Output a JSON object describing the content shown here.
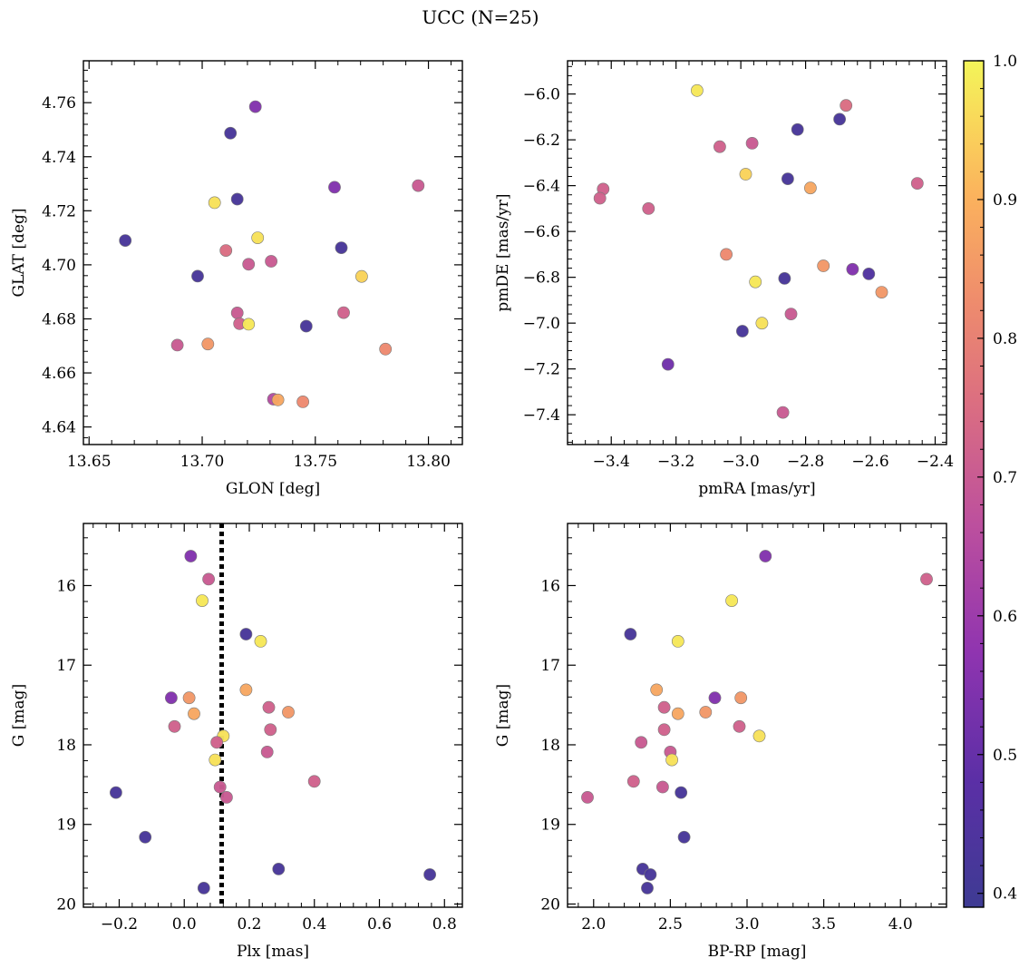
{
  "title": "UCC (N=25)",
  "chart_data": [
    {
      "type": "scatter",
      "xlabel": "GLON [deg]",
      "ylabel": "GLAT [deg]",
      "xlim": [
        13.6475,
        13.815
      ],
      "ylim": [
        4.6335,
        4.7755
      ],
      "yreversed": false,
      "xticks": [
        13.65,
        13.7,
        13.75,
        13.8
      ],
      "xtick_labels": [
        "13.65",
        "13.70",
        "13.75",
        "13.80"
      ],
      "yticks": [
        4.64,
        4.66,
        4.68,
        4.7,
        4.72,
        4.74,
        4.76
      ],
      "ytick_labels": [
        "4.64",
        "4.66",
        "4.68",
        "4.70",
        "4.72",
        "4.74",
        "4.76"
      ],
      "points": [
        {
          "x": 13.7235,
          "y": 4.7585,
          "c": 0.55
        },
        {
          "x": 13.7125,
          "y": 4.7487,
          "c": 0.42
        },
        {
          "x": 13.7055,
          "y": 4.723,
          "c": 0.97
        },
        {
          "x": 13.7155,
          "y": 4.7243,
          "c": 0.42
        },
        {
          "x": 13.7585,
          "y": 4.7287,
          "c": 0.55
        },
        {
          "x": 13.7955,
          "y": 4.7293,
          "c": 0.7
        },
        {
          "x": 13.666,
          "y": 4.709,
          "c": 0.42
        },
        {
          "x": 13.7245,
          "y": 4.71,
          "c": 0.97
        },
        {
          "x": 13.7105,
          "y": 4.7053,
          "c": 0.75
        },
        {
          "x": 13.7615,
          "y": 4.7063,
          "c": 0.42
        },
        {
          "x": 13.698,
          "y": 4.6958,
          "c": 0.42
        },
        {
          "x": 13.7205,
          "y": 4.7002,
          "c": 0.7
        },
        {
          "x": 13.7305,
          "y": 4.7013,
          "c": 0.7
        },
        {
          "x": 13.7705,
          "y": 4.6957,
          "c": 0.95
        },
        {
          "x": 13.7155,
          "y": 4.6822,
          "c": 0.7
        },
        {
          "x": 13.7165,
          "y": 4.6782,
          "c": 0.72
        },
        {
          "x": 13.7205,
          "y": 4.678,
          "c": 0.98
        },
        {
          "x": 13.746,
          "y": 4.6773,
          "c": 0.42
        },
        {
          "x": 13.7625,
          "y": 4.6823,
          "c": 0.72
        },
        {
          "x": 13.689,
          "y": 4.6703,
          "c": 0.7
        },
        {
          "x": 13.7025,
          "y": 4.6707,
          "c": 0.85
        },
        {
          "x": 13.781,
          "y": 4.6688,
          "c": 0.82
        },
        {
          "x": 13.7315,
          "y": 4.6503,
          "c": 0.65
        },
        {
          "x": 13.7335,
          "y": 4.65,
          "c": 0.88
        },
        {
          "x": 13.7445,
          "y": 4.6493,
          "c": 0.82
        }
      ]
    },
    {
      "type": "scatter",
      "xlabel": "pmRA [mas/yr]",
      "ylabel": "pmDE [mas/yr]",
      "xlim": [
        -3.535,
        -2.365
      ],
      "ylim": [
        -7.53,
        -5.855
      ],
      "yreversed": false,
      "xticks": [
        -3.4,
        -3.2,
        -3.0,
        -2.8,
        -2.6,
        -2.4
      ],
      "xtick_labels": [
        "−3.4",
        "−3.2",
        "−3.0",
        "−2.8",
        "−2.6",
        "−2.4"
      ],
      "yticks": [
        -7.4,
        -7.2,
        -7.0,
        -6.8,
        -6.6,
        -6.4,
        -6.2,
        -6.0
      ],
      "ytick_labels": [
        "−7.4",
        "−7.2",
        "−7.0",
        "−6.8",
        "−6.6",
        "−6.4",
        "−6.2",
        "−6.0"
      ],
      "points": [
        {
          "x": -3.135,
          "y": -5.985,
          "c": 0.98
        },
        {
          "x": -2.675,
          "y": -6.05,
          "c": 0.75
        },
        {
          "x": -2.695,
          "y": -6.11,
          "c": 0.42
        },
        {
          "x": -2.825,
          "y": -6.155,
          "c": 0.42
        },
        {
          "x": -2.965,
          "y": -6.215,
          "c": 0.7
        },
        {
          "x": -3.065,
          "y": -6.23,
          "c": 0.72
        },
        {
          "x": -2.985,
          "y": -6.35,
          "c": 0.95
        },
        {
          "x": -2.855,
          "y": -6.37,
          "c": 0.42
        },
        {
          "x": -2.785,
          "y": -6.41,
          "c": 0.88
        },
        {
          "x": -2.455,
          "y": -6.39,
          "c": 0.72
        },
        {
          "x": -3.425,
          "y": -6.415,
          "c": 0.72
        },
        {
          "x": -3.435,
          "y": -6.455,
          "c": 0.72
        },
        {
          "x": -3.285,
          "y": -6.5,
          "c": 0.72
        },
        {
          "x": -3.045,
          "y": -6.7,
          "c": 0.82
        },
        {
          "x": -2.745,
          "y": -6.75,
          "c": 0.85
        },
        {
          "x": -2.655,
          "y": -6.765,
          "c": 0.55
        },
        {
          "x": -2.605,
          "y": -6.785,
          "c": 0.45
        },
        {
          "x": -2.565,
          "y": -6.865,
          "c": 0.85
        },
        {
          "x": -2.955,
          "y": -6.82,
          "c": 0.98
        },
        {
          "x": -2.865,
          "y": -6.805,
          "c": 0.42
        },
        {
          "x": -2.845,
          "y": -6.96,
          "c": 0.7
        },
        {
          "x": -2.935,
          "y": -7.0,
          "c": 0.97
        },
        {
          "x": -2.995,
          "y": -7.035,
          "c": 0.42
        },
        {
          "x": -3.225,
          "y": -7.18,
          "c": 0.52
        },
        {
          "x": -2.87,
          "y": -7.39,
          "c": 0.7
        }
      ]
    },
    {
      "type": "scatter",
      "xlabel": "Plx [mas]",
      "ylabel": "G [mag]",
      "xlim": [
        -0.31,
        0.855
      ],
      "ylim": [
        15.22,
        20.04
      ],
      "yreversed": true,
      "xticks": [
        -0.2,
        0.0,
        0.2,
        0.4,
        0.6,
        0.8
      ],
      "xtick_labels": [
        "−0.2",
        "0.0",
        "0.2",
        "0.4",
        "0.6",
        "0.8"
      ],
      "yticks": [
        16,
        17,
        18,
        19,
        20
      ],
      "ytick_labels": [
        "16",
        "17",
        "18",
        "19",
        "20"
      ],
      "vline_x": 0.115,
      "points": [
        {
          "x": 0.02,
          "y": 15.63,
          "c": 0.55
        },
        {
          "x": 0.075,
          "y": 15.92,
          "c": 0.7
        },
        {
          "x": 0.055,
          "y": 16.19,
          "c": 0.98
        },
        {
          "x": 0.19,
          "y": 16.61,
          "c": 0.42
        },
        {
          "x": 0.235,
          "y": 16.7,
          "c": 0.98
        },
        {
          "x": 0.19,
          "y": 17.31,
          "c": 0.88
        },
        {
          "x": -0.04,
          "y": 17.41,
          "c": 0.55
        },
        {
          "x": 0.015,
          "y": 17.41,
          "c": 0.85
        },
        {
          "x": 0.26,
          "y": 17.53,
          "c": 0.72
        },
        {
          "x": 0.32,
          "y": 17.59,
          "c": 0.85
        },
        {
          "x": 0.03,
          "y": 17.61,
          "c": 0.88
        },
        {
          "x": -0.03,
          "y": 17.77,
          "c": 0.72
        },
        {
          "x": 0.265,
          "y": 17.81,
          "c": 0.72
        },
        {
          "x": 0.12,
          "y": 17.89,
          "c": 0.97
        },
        {
          "x": 0.1,
          "y": 17.97,
          "c": 0.72
        },
        {
          "x": 0.255,
          "y": 18.09,
          "c": 0.7
        },
        {
          "x": 0.095,
          "y": 18.19,
          "c": 0.97
        },
        {
          "x": 0.4,
          "y": 18.46,
          "c": 0.72
        },
        {
          "x": 0.11,
          "y": 18.53,
          "c": 0.7
        },
        {
          "x": 0.13,
          "y": 18.66,
          "c": 0.7
        },
        {
          "x": -0.21,
          "y": 18.6,
          "c": 0.42
        },
        {
          "x": -0.12,
          "y": 19.16,
          "c": 0.42
        },
        {
          "x": 0.29,
          "y": 19.56,
          "c": 0.42
        },
        {
          "x": 0.755,
          "y": 19.63,
          "c": 0.42
        },
        {
          "x": 0.06,
          "y": 19.8,
          "c": 0.42
        }
      ]
    },
    {
      "type": "scatter",
      "xlabel": "BP-RP [mag]",
      "ylabel": "G [mag]",
      "xlim": [
        1.83,
        4.3
      ],
      "ylim": [
        15.22,
        20.04
      ],
      "yreversed": true,
      "xticks": [
        2.0,
        2.5,
        3.0,
        3.5,
        4.0
      ],
      "xtick_labels": [
        "2.0",
        "2.5",
        "3.0",
        "3.5",
        "4.0"
      ],
      "yticks": [
        16,
        17,
        18,
        19,
        20
      ],
      "ytick_labels": [
        "16",
        "17",
        "18",
        "19",
        "20"
      ],
      "points": [
        {
          "x": 3.12,
          "y": 15.63,
          "c": 0.55
        },
        {
          "x": 4.17,
          "y": 15.92,
          "c": 0.72
        },
        {
          "x": 2.9,
          "y": 16.19,
          "c": 0.98
        },
        {
          "x": 2.24,
          "y": 16.61,
          "c": 0.42
        },
        {
          "x": 2.55,
          "y": 16.7,
          "c": 0.98
        },
        {
          "x": 2.41,
          "y": 17.31,
          "c": 0.88
        },
        {
          "x": 2.79,
          "y": 17.41,
          "c": 0.55
        },
        {
          "x": 2.96,
          "y": 17.41,
          "c": 0.85
        },
        {
          "x": 2.46,
          "y": 17.53,
          "c": 0.72
        },
        {
          "x": 2.73,
          "y": 17.59,
          "c": 0.85
        },
        {
          "x": 2.55,
          "y": 17.61,
          "c": 0.88
        },
        {
          "x": 2.95,
          "y": 17.77,
          "c": 0.72
        },
        {
          "x": 2.46,
          "y": 17.81,
          "c": 0.72
        },
        {
          "x": 3.08,
          "y": 17.89,
          "c": 0.97
        },
        {
          "x": 2.31,
          "y": 17.97,
          "c": 0.7
        },
        {
          "x": 2.5,
          "y": 18.09,
          "c": 0.7
        },
        {
          "x": 2.51,
          "y": 18.19,
          "c": 0.97
        },
        {
          "x": 2.26,
          "y": 18.46,
          "c": 0.72
        },
        {
          "x": 2.45,
          "y": 18.53,
          "c": 0.7
        },
        {
          "x": 2.57,
          "y": 18.6,
          "c": 0.42
        },
        {
          "x": 1.96,
          "y": 18.66,
          "c": 0.7
        },
        {
          "x": 2.59,
          "y": 19.16,
          "c": 0.42
        },
        {
          "x": 2.32,
          "y": 19.56,
          "c": 0.42
        },
        {
          "x": 2.37,
          "y": 19.63,
          "c": 0.42
        },
        {
          "x": 2.35,
          "y": 19.8,
          "c": 0.42
        }
      ]
    }
  ],
  "colorbar": {
    "range": [
      0.39,
      1.0
    ],
    "ticks": [
      0.4,
      0.5,
      0.6,
      0.7,
      0.8,
      0.9,
      1.0
    ],
    "tick_labels": [
      "0.4",
      "0.5",
      "0.6",
      "0.7",
      "0.8",
      "0.9",
      "1.0"
    ],
    "colormap": "plasma"
  }
}
